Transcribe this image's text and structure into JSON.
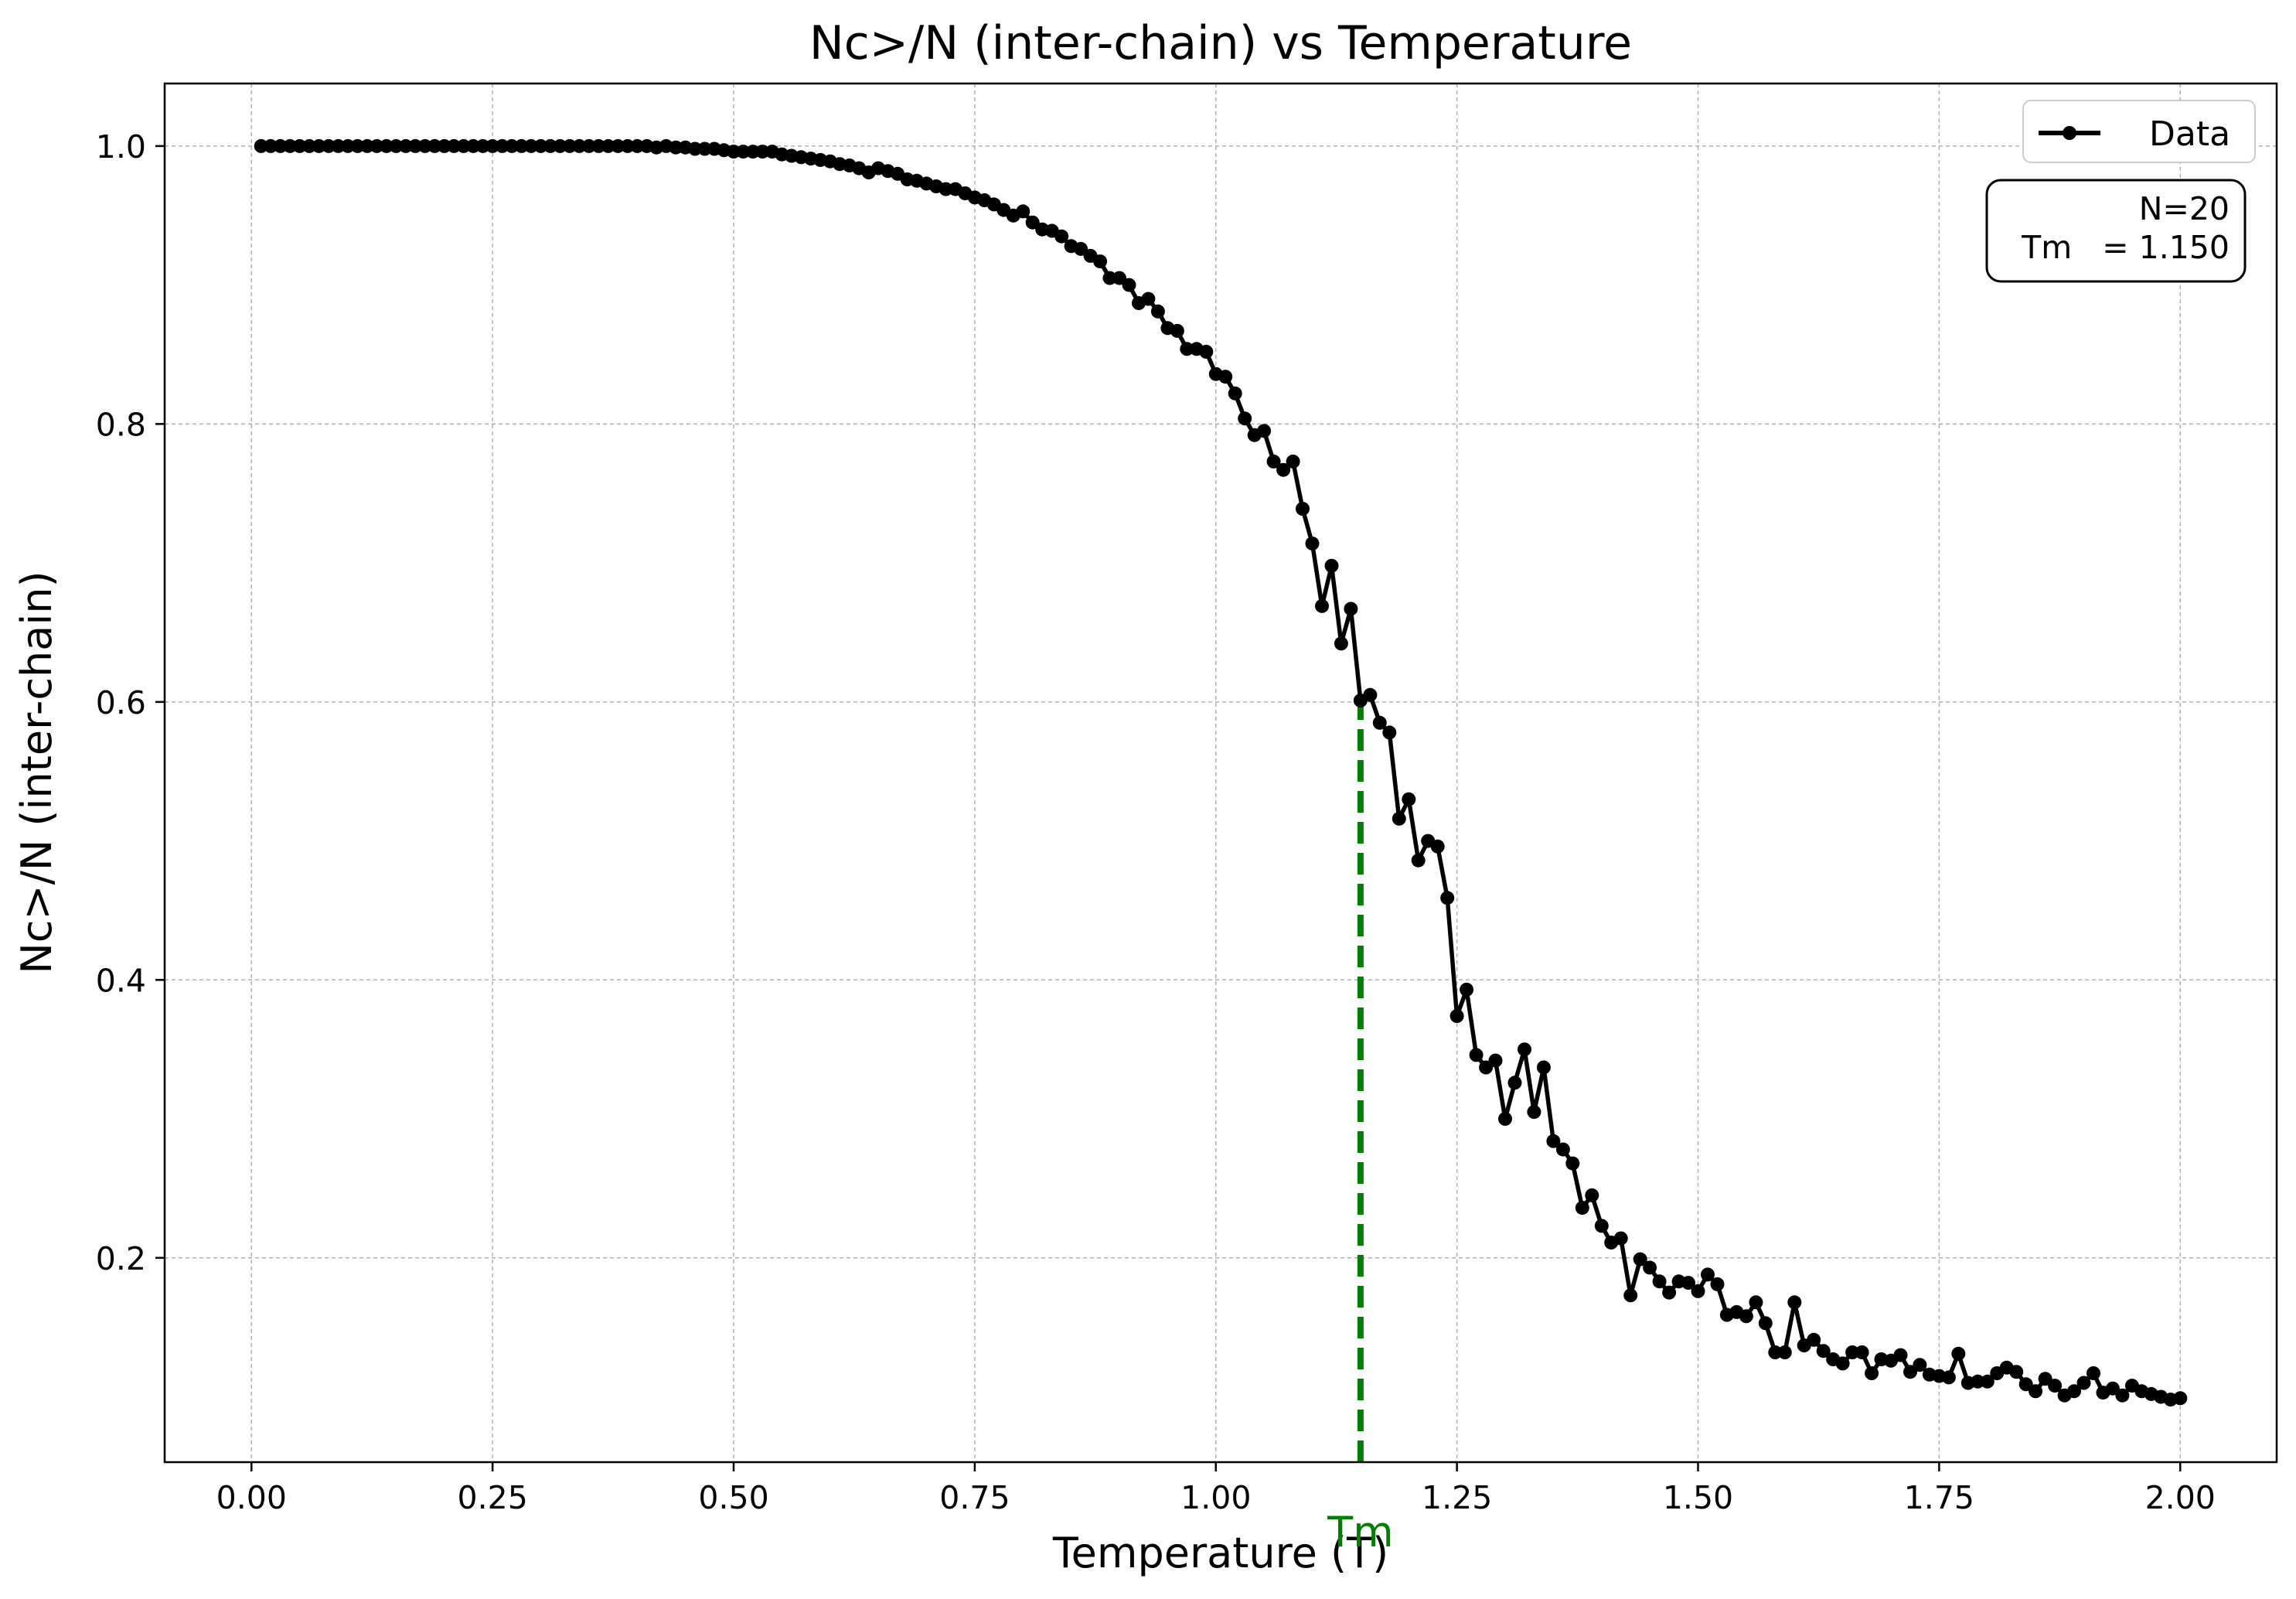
{
  "chart_data": {
    "type": "line",
    "title": "Nc>/N (inter-chain) vs Temperature",
    "xlabel": "Temperature (T)",
    "ylabel": "Nc>/N (inter-chain)",
    "xlim": [
      -0.09,
      2.1
    ],
    "ylim": [
      0.053,
      1.045
    ],
    "grid": true,
    "x_ticks": [
      0.0,
      0.25,
      0.5,
      0.75,
      1.0,
      1.25,
      1.5,
      1.75,
      2.0
    ],
    "x_tick_labels": [
      "0.00",
      "0.25",
      "0.50",
      "0.75",
      "1.00",
      "1.25",
      "1.50",
      "1.75",
      "2.00"
    ],
    "y_ticks": [
      0.2,
      0.4,
      0.6,
      0.8,
      1.0
    ],
    "y_tick_labels": [
      "0.2",
      "0.4",
      "0.6",
      "0.8",
      "1.0"
    ],
    "legend": {
      "position": "top-right",
      "entries": [
        "Data"
      ]
    },
    "annotation": {
      "lines": [
        "N=20",
        "Tm   = 1.150"
      ],
      "position": "top-right"
    },
    "marker_line": {
      "x": 1.15,
      "y_top": 0.601,
      "label": "Tm",
      "color": "#008000"
    },
    "series": [
      {
        "name": "Data",
        "color": "#000000",
        "points": [
          [
            0.01,
            1.0
          ],
          [
            0.02,
            1.0
          ],
          [
            0.03,
            1.0
          ],
          [
            0.04,
            1.0
          ],
          [
            0.05,
            1.0
          ],
          [
            0.06,
            1.0
          ],
          [
            0.07,
            1.0
          ],
          [
            0.08,
            1.0
          ],
          [
            0.09,
            1.0
          ],
          [
            0.1,
            1.0
          ],
          [
            0.11,
            1.0
          ],
          [
            0.12,
            1.0
          ],
          [
            0.13,
            1.0
          ],
          [
            0.14,
            1.0
          ],
          [
            0.15,
            1.0
          ],
          [
            0.16,
            1.0
          ],
          [
            0.17,
            1.0
          ],
          [
            0.18,
            1.0
          ],
          [
            0.19,
            1.0
          ],
          [
            0.2,
            1.0
          ],
          [
            0.21,
            1.0
          ],
          [
            0.22,
            1.0
          ],
          [
            0.23,
            1.0
          ],
          [
            0.24,
            1.0
          ],
          [
            0.25,
            1.0
          ],
          [
            0.26,
            1.0
          ],
          [
            0.27,
            1.0
          ],
          [
            0.28,
            1.0
          ],
          [
            0.29,
            1.0
          ],
          [
            0.3,
            1.0
          ],
          [
            0.31,
            1.0
          ],
          [
            0.32,
            1.0
          ],
          [
            0.33,
            1.0
          ],
          [
            0.34,
            1.0
          ],
          [
            0.35,
            1.0
          ],
          [
            0.36,
            1.0
          ],
          [
            0.37,
            1.0
          ],
          [
            0.38,
            1.0
          ],
          [
            0.39,
            1.0
          ],
          [
            0.4,
            1.0
          ],
          [
            0.41,
            1.0
          ],
          [
            0.42,
            0.999
          ],
          [
            0.43,
            1.0
          ],
          [
            0.44,
            0.999
          ],
          [
            0.45,
            0.999
          ],
          [
            0.46,
            0.998
          ],
          [
            0.47,
            0.998
          ],
          [
            0.48,
            0.998
          ],
          [
            0.49,
            0.997
          ],
          [
            0.5,
            0.996
          ],
          [
            0.51,
            0.996
          ],
          [
            0.52,
            0.996
          ],
          [
            0.53,
            0.996
          ],
          [
            0.54,
            0.996
          ],
          [
            0.55,
            0.994
          ],
          [
            0.56,
            0.993
          ],
          [
            0.57,
            0.992
          ],
          [
            0.58,
            0.991
          ],
          [
            0.59,
            0.99
          ],
          [
            0.6,
            0.989
          ],
          [
            0.61,
            0.987
          ],
          [
            0.62,
            0.986
          ],
          [
            0.63,
            0.984
          ],
          [
            0.64,
            0.981
          ],
          [
            0.65,
            0.984
          ],
          [
            0.66,
            0.982
          ],
          [
            0.67,
            0.98
          ],
          [
            0.68,
            0.976
          ],
          [
            0.69,
            0.975
          ],
          [
            0.7,
            0.973
          ],
          [
            0.71,
            0.971
          ],
          [
            0.72,
            0.969
          ],
          [
            0.73,
            0.969
          ],
          [
            0.74,
            0.966
          ],
          [
            0.75,
            0.963
          ],
          [
            0.76,
            0.961
          ],
          [
            0.77,
            0.958
          ],
          [
            0.78,
            0.954
          ],
          [
            0.79,
            0.95
          ],
          [
            0.8,
            0.953
          ],
          [
            0.81,
            0.945
          ],
          [
            0.82,
            0.94
          ],
          [
            0.83,
            0.939
          ],
          [
            0.84,
            0.935
          ],
          [
            0.85,
            0.928
          ],
          [
            0.86,
            0.926
          ],
          [
            0.87,
            0.921
          ],
          [
            0.88,
            0.917
          ],
          [
            0.89,
            0.905
          ],
          [
            0.9,
            0.905
          ],
          [
            0.91,
            0.9
          ],
          [
            0.92,
            0.887
          ],
          [
            0.93,
            0.89
          ],
          [
            0.94,
            0.881
          ],
          [
            0.95,
            0.869
          ],
          [
            0.96,
            0.867
          ],
          [
            0.97,
            0.854
          ],
          [
            0.98,
            0.854
          ],
          [
            0.99,
            0.852
          ],
          [
            1.0,
            0.836
          ],
          [
            1.01,
            0.834
          ],
          [
            1.02,
            0.822
          ],
          [
            1.03,
            0.804
          ],
          [
            1.04,
            0.792
          ],
          [
            1.05,
            0.795
          ],
          [
            1.06,
            0.773
          ],
          [
            1.07,
            0.767
          ],
          [
            1.08,
            0.773
          ],
          [
            1.09,
            0.739
          ],
          [
            1.1,
            0.714
          ],
          [
            1.11,
            0.669
          ],
          [
            1.12,
            0.698
          ],
          [
            1.13,
            0.642
          ],
          [
            1.14,
            0.667
          ],
          [
            1.15,
            0.601
          ],
          [
            1.16,
            0.605
          ],
          [
            1.17,
            0.585
          ],
          [
            1.18,
            0.578
          ],
          [
            1.19,
            0.516
          ],
          [
            1.2,
            0.53
          ],
          [
            1.21,
            0.486
          ],
          [
            1.22,
            0.5
          ],
          [
            1.23,
            0.496
          ],
          [
            1.24,
            0.459
          ],
          [
            1.25,
            0.374
          ],
          [
            1.26,
            0.393
          ],
          [
            1.27,
            0.346
          ],
          [
            1.28,
            0.337
          ],
          [
            1.29,
            0.342
          ],
          [
            1.3,
            0.3
          ],
          [
            1.31,
            0.326
          ],
          [
            1.32,
            0.35
          ],
          [
            1.33,
            0.305
          ],
          [
            1.34,
            0.337
          ],
          [
            1.35,
            0.284
          ],
          [
            1.36,
            0.278
          ],
          [
            1.37,
            0.268
          ],
          [
            1.38,
            0.236
          ],
          [
            1.39,
            0.245
          ],
          [
            1.4,
            0.223
          ],
          [
            1.41,
            0.211
          ],
          [
            1.42,
            0.214
          ],
          [
            1.43,
            0.173
          ],
          [
            1.44,
            0.199
          ],
          [
            1.45,
            0.193
          ],
          [
            1.46,
            0.183
          ],
          [
            1.47,
            0.175
          ],
          [
            1.48,
            0.183
          ],
          [
            1.49,
            0.182
          ],
          [
            1.5,
            0.176
          ],
          [
            1.51,
            0.188
          ],
          [
            1.52,
            0.181
          ],
          [
            1.53,
            0.159
          ],
          [
            1.54,
            0.161
          ],
          [
            1.55,
            0.158
          ],
          [
            1.56,
            0.168
          ],
          [
            1.57,
            0.153
          ],
          [
            1.58,
            0.132
          ],
          [
            1.59,
            0.132
          ],
          [
            1.6,
            0.168
          ],
          [
            1.61,
            0.137
          ],
          [
            1.62,
            0.141
          ],
          [
            1.63,
            0.133
          ],
          [
            1.64,
            0.127
          ],
          [
            1.65,
            0.124
          ],
          [
            1.66,
            0.132
          ],
          [
            1.67,
            0.132
          ],
          [
            1.68,
            0.117
          ],
          [
            1.69,
            0.127
          ],
          [
            1.7,
            0.126
          ],
          [
            1.71,
            0.13
          ],
          [
            1.72,
            0.118
          ],
          [
            1.73,
            0.123
          ],
          [
            1.74,
            0.116
          ],
          [
            1.75,
            0.115
          ],
          [
            1.76,
            0.114
          ],
          [
            1.77,
            0.131
          ],
          [
            1.78,
            0.11
          ],
          [
            1.79,
            0.111
          ],
          [
            1.8,
            0.111
          ],
          [
            1.81,
            0.117
          ],
          [
            1.82,
            0.121
          ],
          [
            1.83,
            0.118
          ],
          [
            1.84,
            0.109
          ],
          [
            1.85,
            0.104
          ],
          [
            1.86,
            0.113
          ],
          [
            1.87,
            0.108
          ],
          [
            1.88,
            0.101
          ],
          [
            1.89,
            0.104
          ],
          [
            1.9,
            0.11
          ],
          [
            1.91,
            0.117
          ],
          [
            1.92,
            0.103
          ],
          [
            1.93,
            0.106
          ],
          [
            1.94,
            0.101
          ],
          [
            1.95,
            0.108
          ],
          [
            1.96,
            0.104
          ],
          [
            1.97,
            0.102
          ],
          [
            1.98,
            0.1
          ],
          [
            1.99,
            0.098
          ],
          [
            2.0,
            0.099
          ]
        ]
      }
    ]
  }
}
